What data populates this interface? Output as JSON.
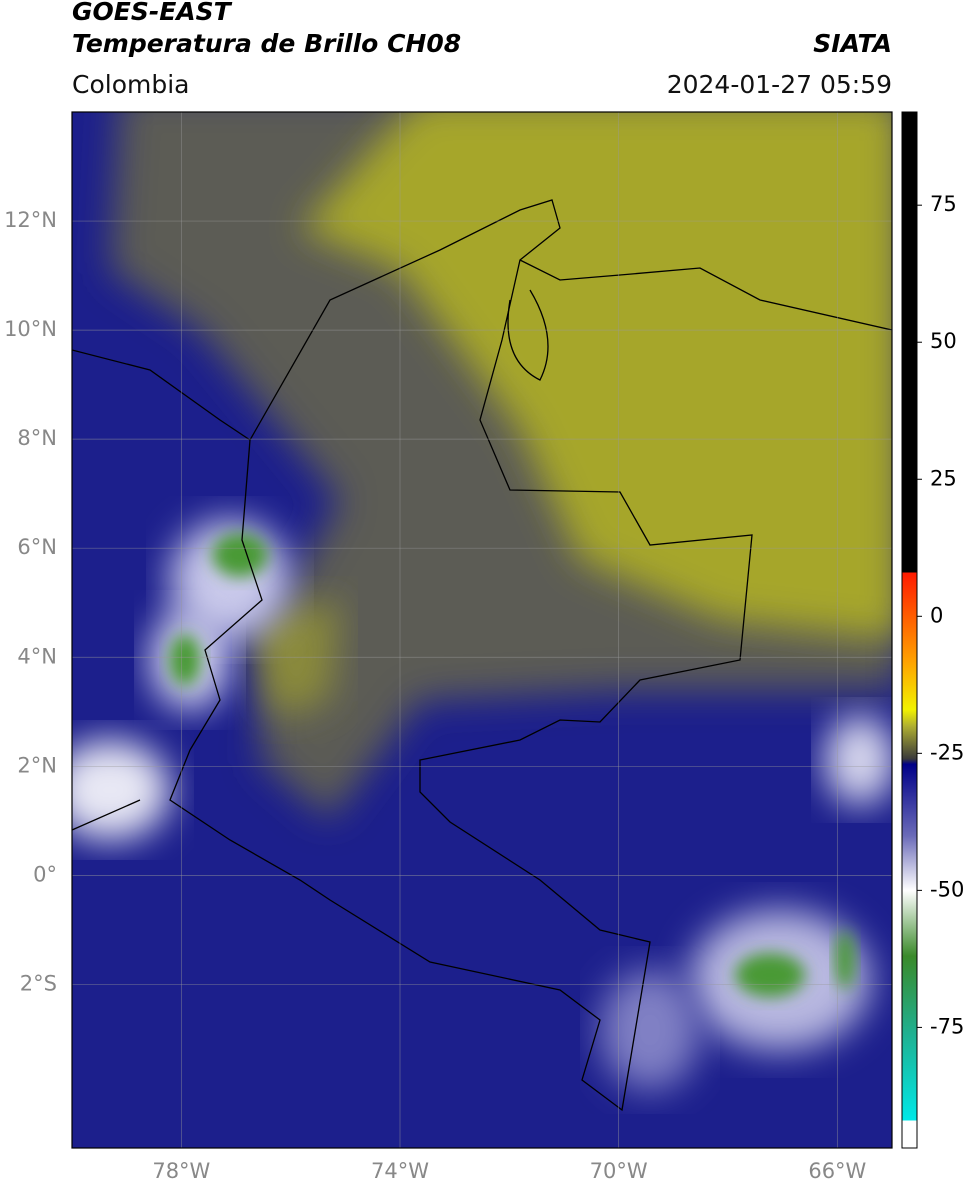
{
  "header": {
    "satellite": "GOES-EAST",
    "product": "Temperatura de Brillo CH08",
    "region": "Colombia",
    "agency": "SIATA",
    "datetime": "2024-01-27 05:59"
  },
  "map": {
    "lonlim": [
      -80,
      -65
    ],
    "latlim": [
      -5,
      14
    ],
    "lat_ticks": [
      {
        "value": 12,
        "label": "12°N"
      },
      {
        "value": 10,
        "label": "10°N"
      },
      {
        "value": 8,
        "label": "8°N"
      },
      {
        "value": 6,
        "label": "6°N"
      },
      {
        "value": 4,
        "label": "4°N"
      },
      {
        "value": 2,
        "label": "2°N"
      },
      {
        "value": 0,
        "label": "0°"
      },
      {
        "value": -2,
        "label": "2°S"
      }
    ],
    "lon_ticks": [
      {
        "value": -78,
        "label": "78°W"
      },
      {
        "value": -74,
        "label": "74°W"
      },
      {
        "value": -70,
        "label": "70°W"
      },
      {
        "value": -66,
        "label": "66°W"
      }
    ]
  },
  "colorbar": {
    "lim": [
      -97,
      92
    ],
    "ticks": [
      75,
      50,
      25,
      0,
      -25,
      -50,
      -75
    ],
    "stops": [
      {
        "value": 92,
        "color": "#000000"
      },
      {
        "value": 8,
        "color": "#000000"
      },
      {
        "value": 8,
        "color": "#ff1a00"
      },
      {
        "value": -8,
        "color": "#ffa000"
      },
      {
        "value": -17,
        "color": "#f2f200"
      },
      {
        "value": -20,
        "color": "#b0b030"
      },
      {
        "value": -26,
        "color": "#3a3a3a"
      },
      {
        "value": -27,
        "color": "#000088"
      },
      {
        "value": -40,
        "color": "#6a6ab8"
      },
      {
        "value": -50,
        "color": "#ffffff"
      },
      {
        "value": -62,
        "color": "#3a8a2a"
      },
      {
        "value": -76,
        "color": "#20b090"
      },
      {
        "value": -92,
        "color": "#00e8e8"
      },
      {
        "value": -92,
        "color": "#ffffff"
      },
      {
        "value": -97,
        "color": "#ffffff"
      }
    ]
  }
}
